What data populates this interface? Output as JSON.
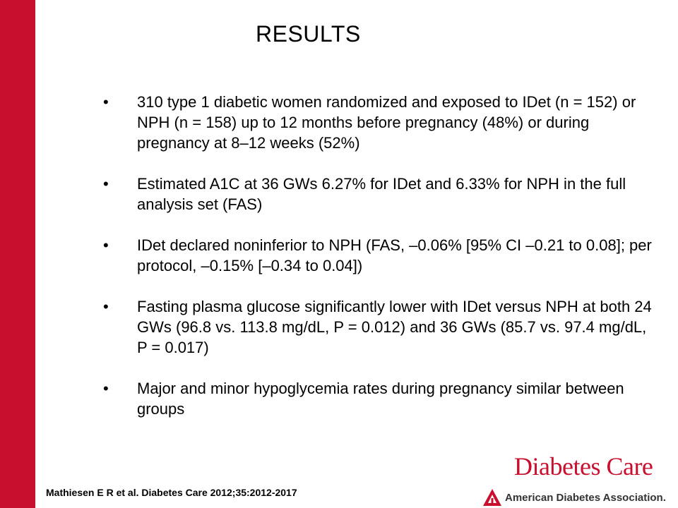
{
  "slide": {
    "title": "RESULTS",
    "bullet_marker": "•",
    "bullets": [
      {
        "text": "310 type 1 diabetic women randomized and exposed to IDet (n = 152) or NPH (n = 158) up to 12 months before pregnancy (48%) or during pregnancy at 8–12 weeks (52%)"
      },
      {
        "text": "Estimated A1C at 36 GWs 6.27% for IDet and 6.33% for NPH in the full analysis set (FAS)"
      },
      {
        "text": "IDet declared noninferior to NPH (FAS, –0.06% [95% CI –0.21 to 0.08]; per protocol, –0.15% [–0.34 to 0.04])"
      },
      {
        "text": "Fasting plasma glucose significantly lower with IDet versus NPH at both 24 GWs (96.8 vs. 113.8 mg/dL, P = 0.012) and 36 GWs (85.7 vs. 97.4 mg/dL, P = 0.017)"
      },
      {
        "text": "Major and minor hypoglycemia rates during pregnancy similar between groups"
      }
    ],
    "citation": "Mathiesen E R et al. Diabetes Care 2012;35:2012-2017"
  },
  "branding": {
    "journal": "Diabetes Care",
    "association": "American Diabetes Association.",
    "association_icon": "ada-triangle-logo-icon",
    "accent_color": "#c8102e"
  }
}
